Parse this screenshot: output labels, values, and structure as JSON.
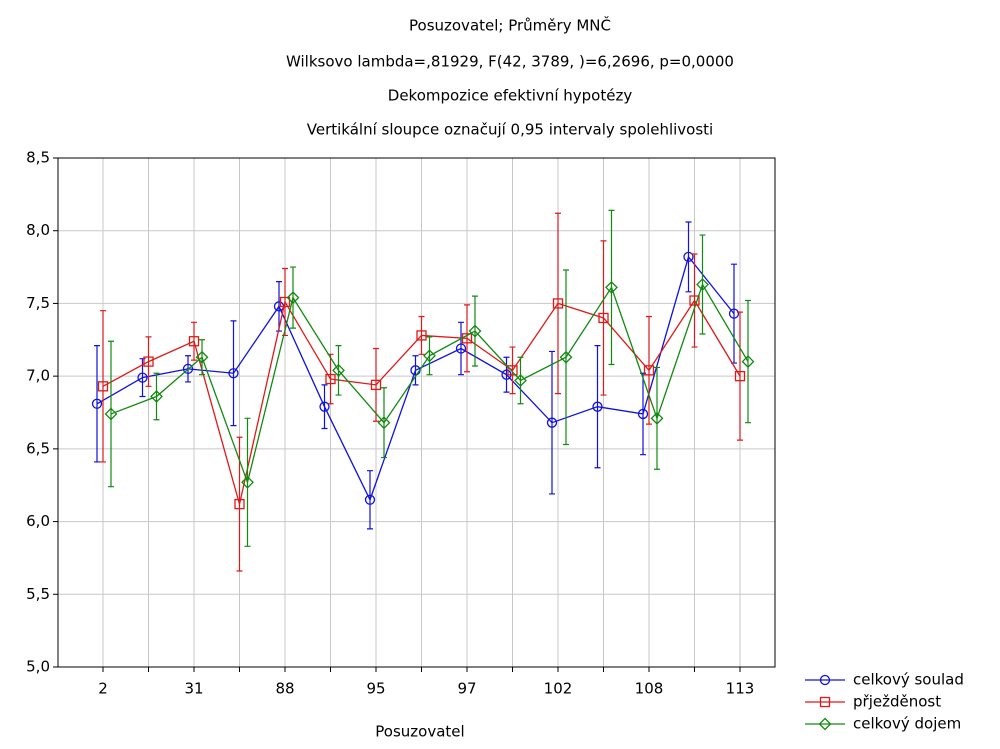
{
  "chart_data": {
    "type": "line",
    "title": [
      "Posuzovatel; Průměry MNČ",
      "Wilksovo lambda=,81929, F(42, 3789, )=6,2696, p=0,0000",
      "Dekompozice efektivní hypotézy",
      "Vertikální sloupce označují 0,95 intervaly spolehlivosti"
    ],
    "xlabel": "Posuzovatel",
    "categories": [
      "2",
      null,
      "31",
      null,
      "88",
      null,
      "95",
      null,
      "97",
      null,
      "102",
      null,
      "108",
      null,
      "113"
    ],
    "ylim": [
      5.0,
      8.5
    ],
    "yticks": [
      {
        "value": 5.0,
        "label": "5,0"
      },
      {
        "value": 5.5,
        "label": "5,5"
      },
      {
        "value": 6.0,
        "label": "6,0"
      },
      {
        "value": 6.5,
        "label": "6,5"
      },
      {
        "value": 7.0,
        "label": "7,0"
      },
      {
        "value": 7.5,
        "label": "7,5"
      },
      {
        "value": 8.0,
        "label": "8,0"
      },
      {
        "value": 8.5,
        "label": "8,5"
      }
    ],
    "grid": true,
    "legend": "bottom-right",
    "series": [
      {
        "name": "celkový soulad",
        "color": "#1010e0",
        "marker": "circle",
        "values": [
          6.81,
          6.99,
          7.05,
          7.02,
          7.48,
          6.79,
          6.15,
          7.04,
          7.19,
          7.01,
          6.68,
          6.79,
          6.74,
          7.82,
          7.43
        ],
        "errors": [
          0.4,
          0.13,
          0.09,
          0.36,
          0.17,
          0.15,
          0.2,
          0.1,
          0.18,
          0.12,
          0.49,
          0.42,
          0.28,
          0.24,
          0.34
        ]
      },
      {
        "name": "přježděnost",
        "color": "#e01818",
        "marker": "square",
        "values": [
          6.93,
          7.1,
          7.24,
          6.12,
          7.51,
          6.98,
          6.94,
          7.28,
          7.26,
          7.04,
          7.5,
          7.4,
          7.04,
          7.52,
          7.0
        ],
        "errors": [
          0.52,
          0.17,
          0.13,
          0.46,
          0.23,
          0.17,
          0.25,
          0.13,
          0.23,
          0.16,
          0.62,
          0.53,
          0.37,
          0.32,
          0.44
        ]
      },
      {
        "name": "celkový dojem",
        "color": "#108a10",
        "marker": "diamond",
        "values": [
          6.74,
          6.86,
          7.13,
          6.27,
          7.54,
          7.04,
          6.68,
          7.14,
          7.31,
          6.97,
          7.13,
          7.61,
          6.71,
          7.63,
          7.1
        ],
        "errors": [
          0.5,
          0.16,
          0.12,
          0.44,
          0.21,
          0.17,
          0.24,
          0.13,
          0.24,
          0.16,
          0.6,
          0.53,
          0.35,
          0.34,
          0.42
        ]
      }
    ]
  }
}
